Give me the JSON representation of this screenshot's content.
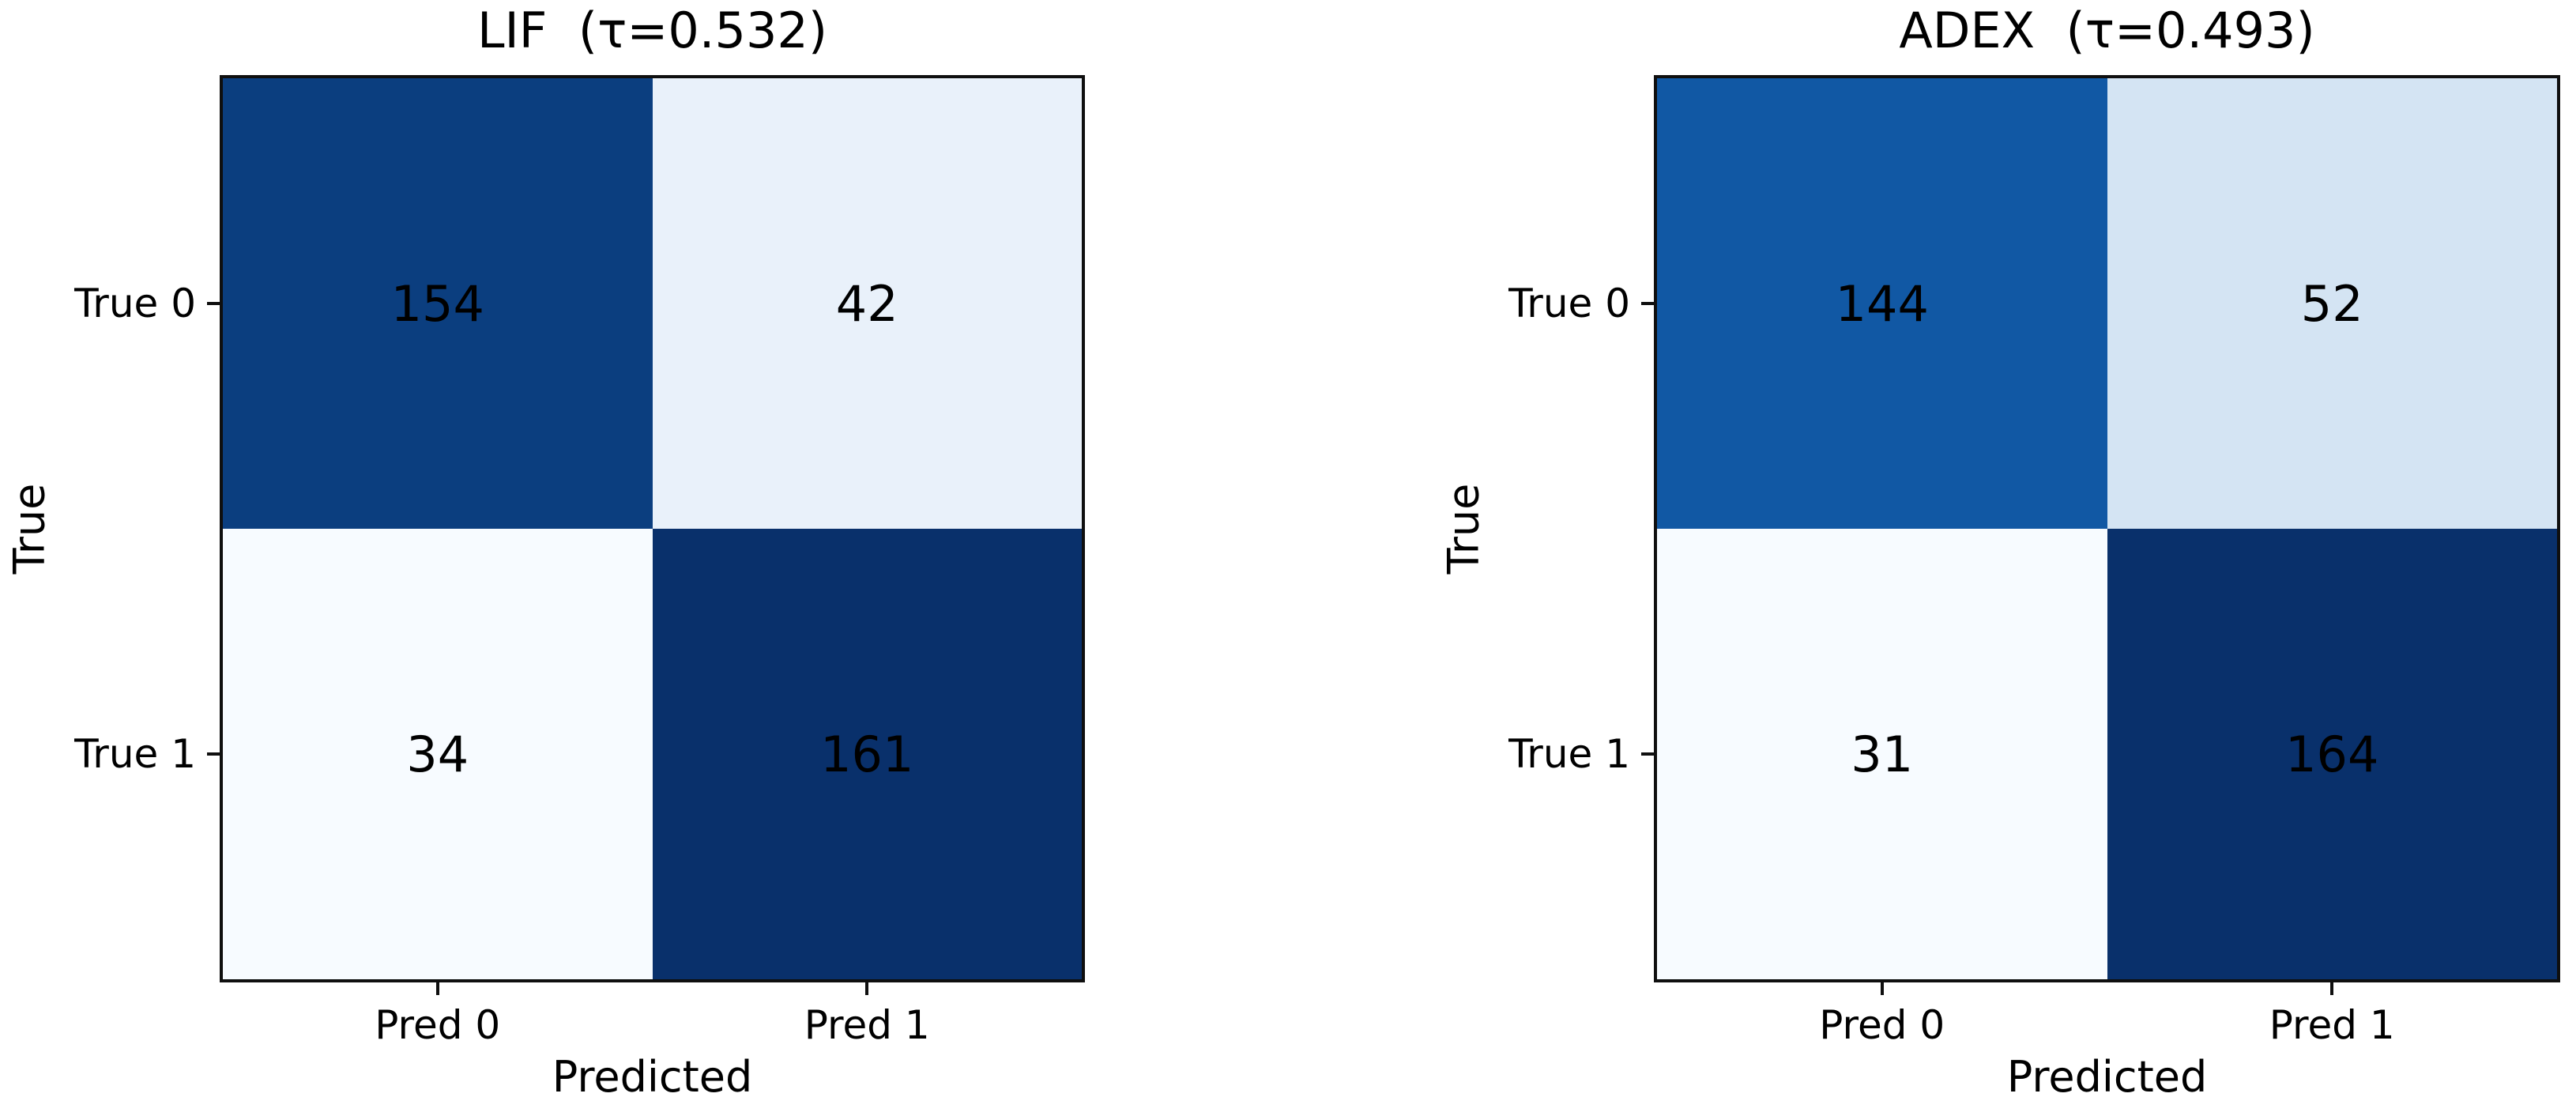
{
  "figure": {
    "background": "#ffffff",
    "text_color": "#000000"
  },
  "chart_data": [
    {
      "type": "heatmap",
      "model": "LIF",
      "title": "LIF  (τ=0.532)",
      "tau": "0.532",
      "xlabel": "Predicted",
      "ylabel": "True",
      "x_ticklabels": [
        "Pred 0",
        "Pred 1"
      ],
      "y_ticklabels": [
        "True 0",
        "True 1"
      ],
      "matrix": [
        [
          154,
          42
        ],
        [
          34,
          161
        ]
      ],
      "cell_colors": [
        [
          "#0b3e7f",
          "#e9f1fa"
        ],
        [
          "#f7fbff",
          "#09306b"
        ]
      ],
      "colormap": "Blues",
      "legend": "none",
      "grid": "off"
    },
    {
      "type": "heatmap",
      "model": "ADEX",
      "title": "ADEX  (τ=0.493)",
      "tau": "0.493",
      "xlabel": "Predicted",
      "ylabel": "True",
      "x_ticklabels": [
        "Pred 0",
        "Pred 1"
      ],
      "y_ticklabels": [
        "True 0",
        "True 1"
      ],
      "matrix": [
        [
          144,
          52
        ],
        [
          31,
          164
        ]
      ],
      "cell_colors": [
        [
          "#1158a4",
          "#d4e4f3"
        ],
        [
          "#f7fbff",
          "#09306b"
        ]
      ],
      "colormap": "Blues",
      "legend": "none",
      "grid": "off"
    }
  ]
}
